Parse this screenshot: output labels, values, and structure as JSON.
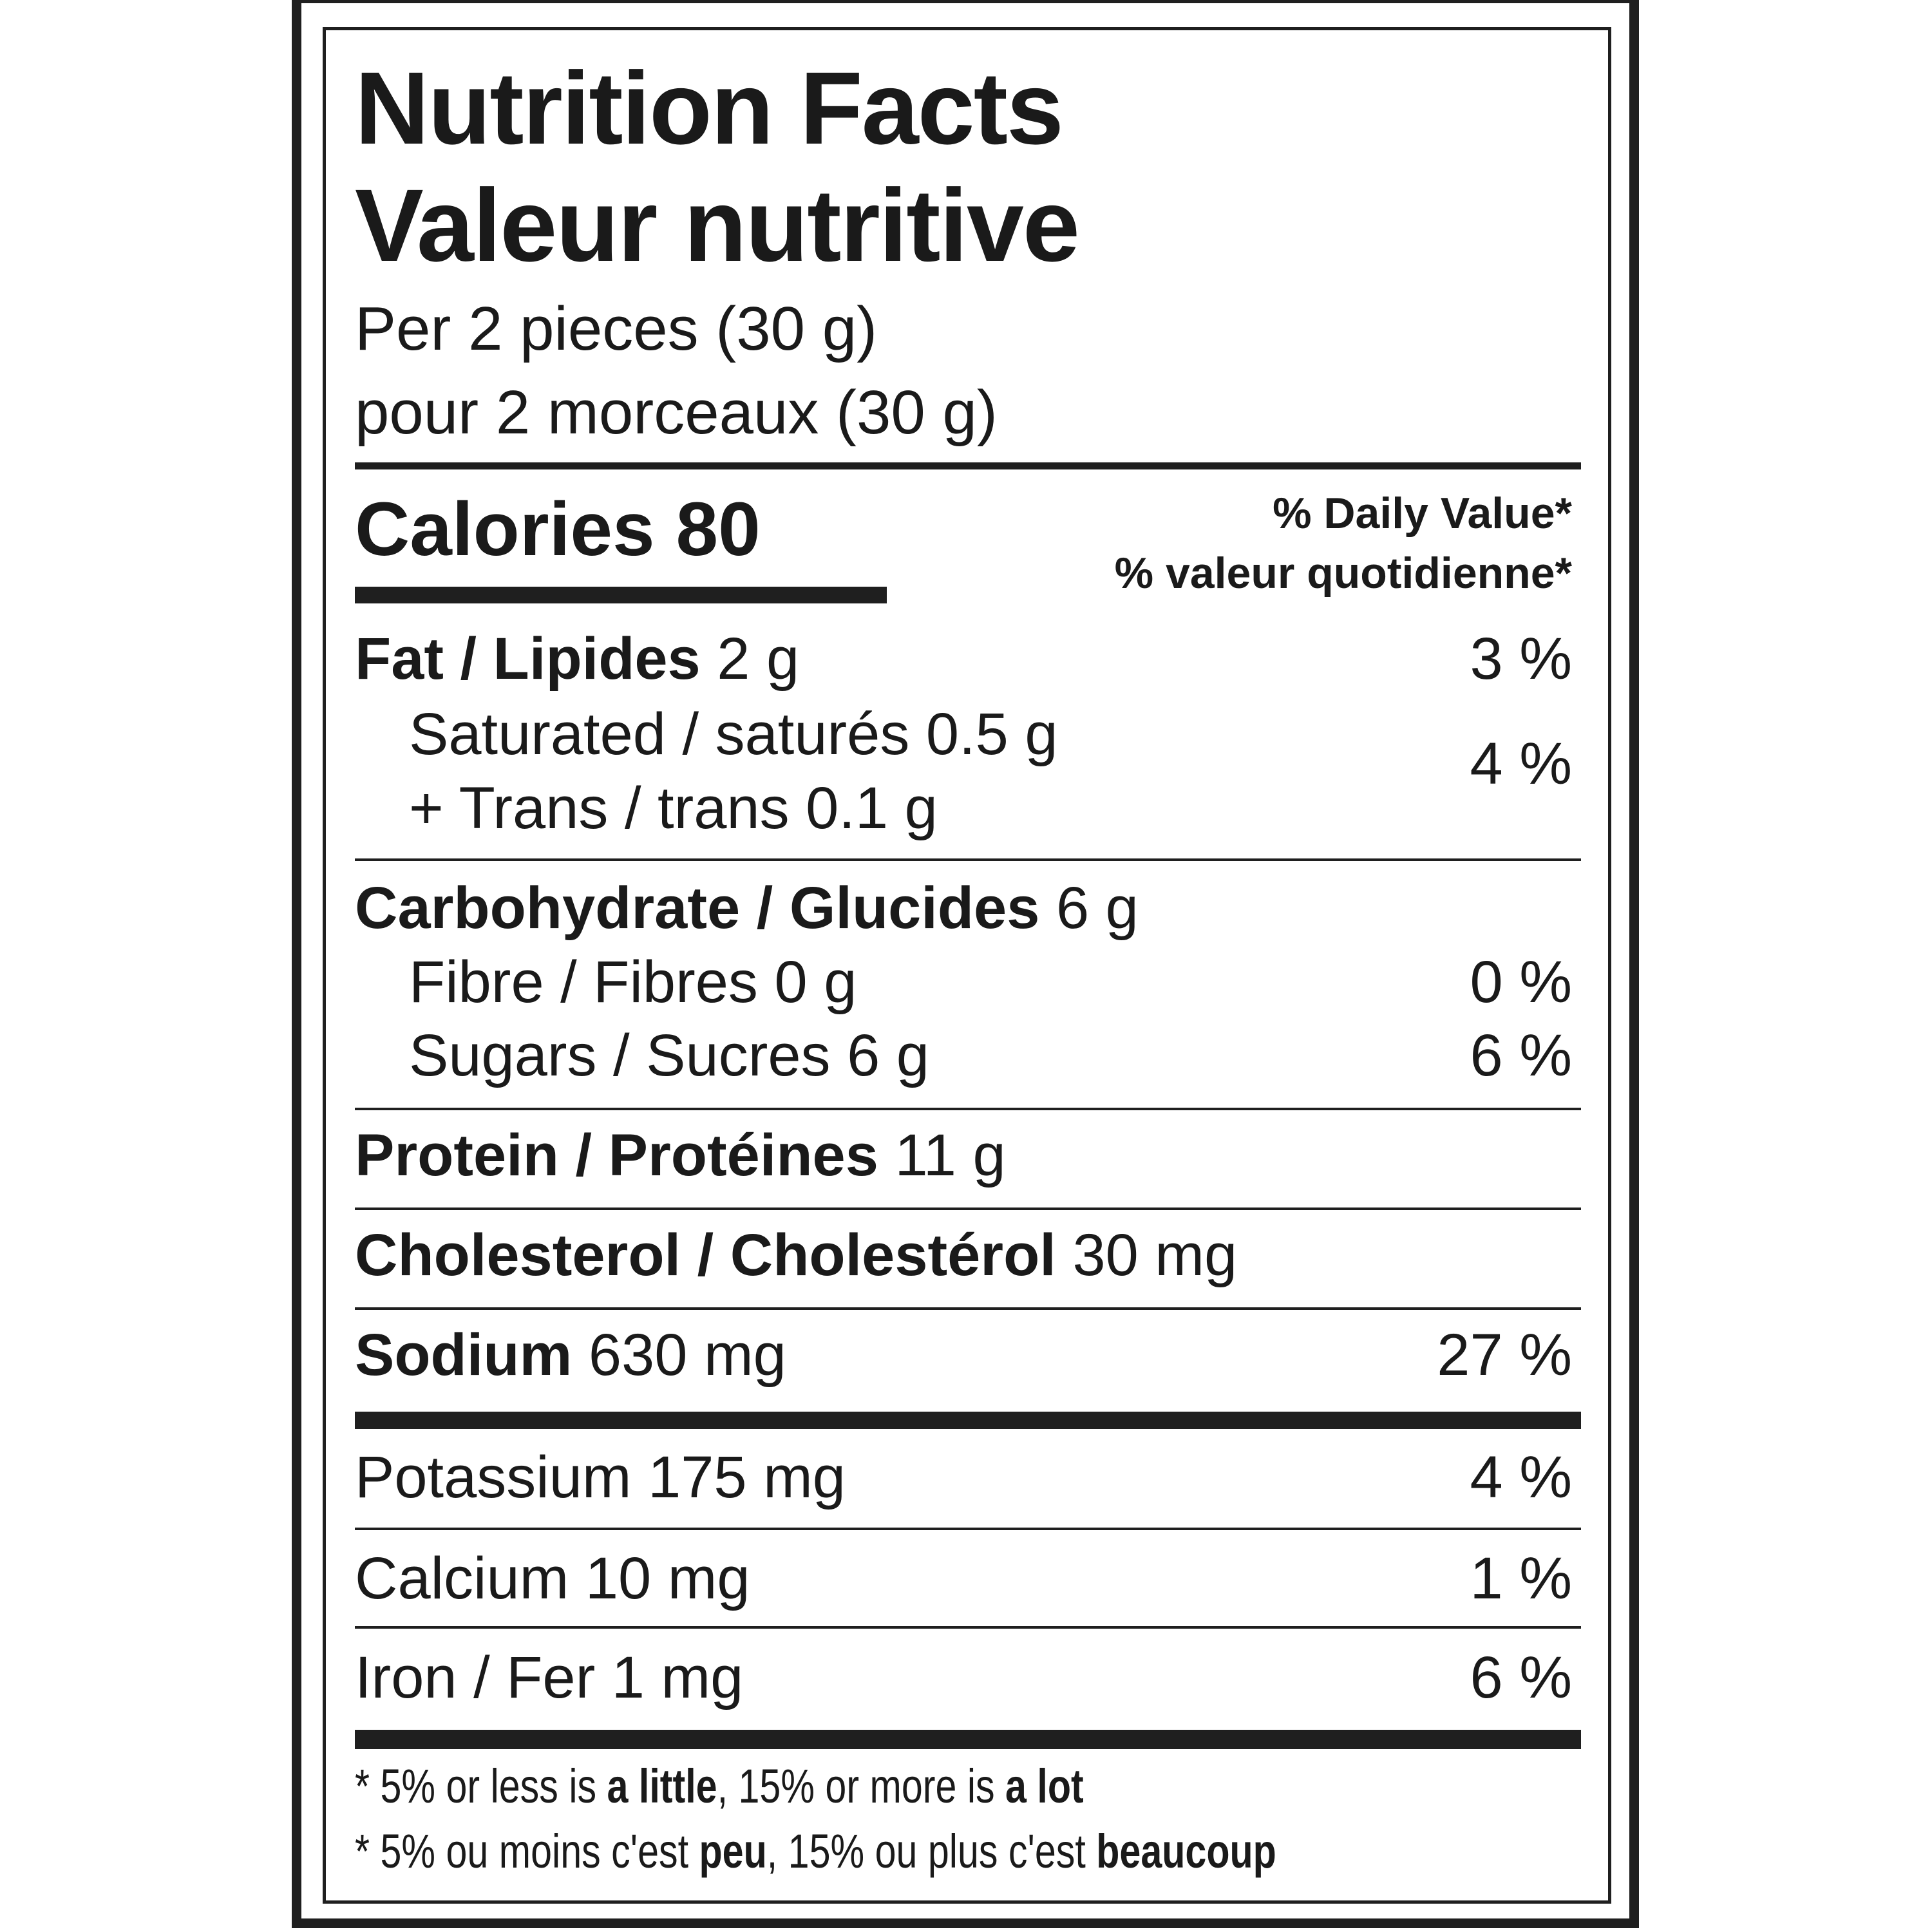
{
  "title_en": "Nutrition Facts",
  "title_fr": "Valeur nutritive",
  "serving_en": "Per 2 pieces (30 g)",
  "serving_fr": "pour 2 morceaux (30 g)",
  "calories": {
    "label": "Calories",
    "value": "80"
  },
  "daily_value_en": "% Daily Value*",
  "daily_value_fr": "% valeur quotidienne*",
  "fat": {
    "label": "Fat / Lipides",
    "amount": "2 g",
    "dv": "3 %"
  },
  "saturated": {
    "label": "Saturated / saturés",
    "amount": "0.5 g"
  },
  "trans": {
    "label": "+ Trans / trans",
    "amount": "0.1 g"
  },
  "sat_trans_dv": "4 %",
  "carbohydrate": {
    "label": "Carbohydrate / Glucides",
    "amount": "6 g"
  },
  "fibre": {
    "label": "Fibre / Fibres",
    "amount": "0 g",
    "dv": "0 %"
  },
  "sugars": {
    "label": "Sugars / Sucres",
    "amount": "6 g",
    "dv": "6 %"
  },
  "protein": {
    "label": "Protein / Protéines",
    "amount": "11 g"
  },
  "cholesterol": {
    "label": "Cholesterol / Cholestérol",
    "amount": "30 mg"
  },
  "sodium": {
    "label": "Sodium",
    "amount": "630 mg",
    "dv": "27 %"
  },
  "potassium": {
    "label": "Potassium",
    "amount": "175 mg",
    "dv": "4 %"
  },
  "calcium": {
    "label": "Calcium",
    "amount": "10 mg",
    "dv": "1 %"
  },
  "iron": {
    "label": "Iron / Fer",
    "amount": "1 mg",
    "dv": "6 %"
  },
  "footnote_en": {
    "star": "*",
    "p1": "5% or less is ",
    "b1": "a little",
    "p2": ", 15% or more is ",
    "b2": "a lot"
  },
  "footnote_fr": {
    "star": "*",
    "p1": "5% ou moins c'est ",
    "b1": "peu",
    "p2": ", 15% ou plus c'est ",
    "b2": "beaucoup"
  }
}
